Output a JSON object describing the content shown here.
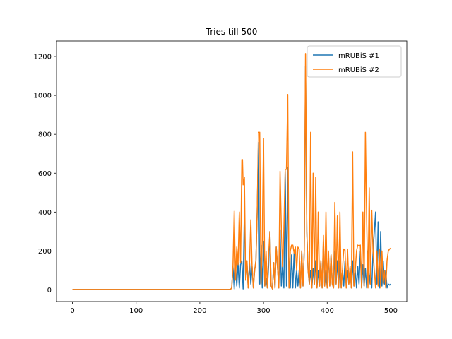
{
  "chart_data": {
    "type": "line",
    "title": "Tries till 500",
    "xlabel": "",
    "ylabel": "",
    "xlim": [
      -25,
      525
    ],
    "ylim": [
      -60,
      1280
    ],
    "xticks": [
      0,
      100,
      200,
      300,
      400,
      500
    ],
    "yticks": [
      0,
      200,
      400,
      600,
      800,
      1000,
      1200
    ],
    "grid": false,
    "legend": "top-right",
    "series": [
      {
        "name": "mRUBiS #1",
        "color": "#1f77b4",
        "points": [
          [
            0,
            2
          ],
          [
            100,
            2
          ],
          [
            200,
            2
          ],
          [
            248,
            2
          ],
          [
            250,
            10
          ],
          [
            252,
            120
          ],
          [
            254,
            5
          ],
          [
            256,
            130
          ],
          [
            258,
            20
          ],
          [
            260,
            140
          ],
          [
            262,
            10
          ],
          [
            264,
            130
          ],
          [
            266,
            150
          ],
          [
            268,
            5
          ],
          [
            270,
            400
          ],
          [
            272,
            50
          ],
          [
            274,
            150
          ],
          [
            276,
            10
          ],
          [
            278,
            140
          ],
          [
            280,
            30
          ],
          [
            282,
            120
          ],
          [
            284,
            10
          ],
          [
            286,
            100
          ],
          [
            288,
            150
          ],
          [
            290,
            400
          ],
          [
            292,
            760
          ],
          [
            294,
            30
          ],
          [
            296,
            230
          ],
          [
            298,
            10
          ],
          [
            300,
            250
          ],
          [
            302,
            20
          ],
          [
            304,
            60
          ],
          [
            306,
            10
          ],
          [
            308,
            120
          ],
          [
            310,
            300
          ],
          [
            312,
            20
          ],
          [
            314,
            5
          ],
          [
            316,
            140
          ],
          [
            318,
            10
          ],
          [
            320,
            220
          ],
          [
            322,
            120
          ],
          [
            324,
            10
          ],
          [
            326,
            310
          ],
          [
            328,
            20
          ],
          [
            330,
            120
          ],
          [
            332,
            10
          ],
          [
            334,
            610
          ],
          [
            336,
            20
          ],
          [
            338,
            630
          ],
          [
            340,
            10
          ],
          [
            342,
            10
          ],
          [
            344,
            180
          ],
          [
            346,
            10
          ],
          [
            348,
            190
          ],
          [
            350,
            10
          ],
          [
            352,
            100
          ],
          [
            354,
            20
          ],
          [
            356,
            100
          ],
          [
            358,
            10
          ],
          [
            360,
            200
          ],
          [
            362,
            20
          ],
          [
            364,
            200
          ],
          [
            366,
            1150
          ],
          [
            368,
            300
          ],
          [
            370,
            100
          ],
          [
            372,
            30
          ],
          [
            374,
            100
          ],
          [
            376,
            10
          ],
          [
            378,
            110
          ],
          [
            380,
            30
          ],
          [
            382,
            150
          ],
          [
            384,
            10
          ],
          [
            386,
            100
          ],
          [
            388,
            20
          ],
          [
            390,
            150
          ],
          [
            392,
            10
          ],
          [
            394,
            250
          ],
          [
            396,
            20
          ],
          [
            398,
            100
          ],
          [
            400,
            10
          ],
          [
            402,
            180
          ],
          [
            404,
            20
          ],
          [
            406,
            180
          ],
          [
            408,
            30
          ],
          [
            410,
            10
          ],
          [
            412,
            200
          ],
          [
            414,
            30
          ],
          [
            416,
            150
          ],
          [
            418,
            10
          ],
          [
            420,
            150
          ],
          [
            422,
            10
          ],
          [
            424,
            100
          ],
          [
            426,
            20
          ],
          [
            428,
            150
          ],
          [
            430,
            10
          ],
          [
            432,
            100
          ],
          [
            434,
            30
          ],
          [
            436,
            120
          ],
          [
            438,
            10
          ],
          [
            440,
            150
          ],
          [
            442,
            20
          ],
          [
            444,
            100
          ],
          [
            446,
            10
          ],
          [
            448,
            120
          ],
          [
            450,
            30
          ],
          [
            452,
            200
          ],
          [
            454,
            10
          ],
          [
            456,
            130
          ],
          [
            458,
            20
          ],
          [
            460,
            110
          ],
          [
            462,
            10
          ],
          [
            464,
            200
          ],
          [
            466,
            30
          ],
          [
            468,
            100
          ],
          [
            470,
            10
          ],
          [
            472,
            200
          ],
          [
            474,
            300
          ],
          [
            476,
            400
          ],
          [
            478,
            30
          ],
          [
            480,
            350
          ],
          [
            482,
            10
          ],
          [
            484,
            300
          ],
          [
            486,
            20
          ],
          [
            488,
            150
          ],
          [
            490,
            30
          ],
          [
            492,
            100
          ],
          [
            494,
            10
          ],
          [
            496,
            30
          ],
          [
            498,
            25
          ],
          [
            500,
            30
          ]
        ]
      },
      {
        "name": "mRUBiS #2",
        "color": "#ff7f0e",
        "points": [
          [
            0,
            2
          ],
          [
            100,
            2
          ],
          [
            200,
            2
          ],
          [
            248,
            2
          ],
          [
            250,
            10
          ],
          [
            252,
            120
          ],
          [
            254,
            405
          ],
          [
            256,
            50
          ],
          [
            258,
            220
          ],
          [
            260,
            130
          ],
          [
            262,
            400
          ],
          [
            264,
            140
          ],
          [
            266,
            670
          ],
          [
            267,
            670
          ],
          [
            268,
            540
          ],
          [
            270,
            580
          ],
          [
            272,
            50
          ],
          [
            274,
            150
          ],
          [
            276,
            10
          ],
          [
            278,
            140
          ],
          [
            280,
            360
          ],
          [
            282,
            120
          ],
          [
            284,
            10
          ],
          [
            286,
            100
          ],
          [
            288,
            150
          ],
          [
            290,
            400
          ],
          [
            292,
            810
          ],
          [
            294,
            810
          ],
          [
            296,
            30
          ],
          [
            298,
            260
          ],
          [
            300,
            780
          ],
          [
            302,
            20
          ],
          [
            304,
            200
          ],
          [
            306,
            10
          ],
          [
            308,
            180
          ],
          [
            310,
            300
          ],
          [
            312,
            20
          ],
          [
            314,
            5
          ],
          [
            316,
            140
          ],
          [
            318,
            10
          ],
          [
            320,
            220
          ],
          [
            322,
            120
          ],
          [
            324,
            10
          ],
          [
            326,
            610
          ],
          [
            328,
            320
          ],
          [
            330,
            120
          ],
          [
            332,
            310
          ],
          [
            334,
            620
          ],
          [
            336,
            620
          ],
          [
            338,
            1005
          ],
          [
            340,
            10
          ],
          [
            342,
            200
          ],
          [
            344,
            230
          ],
          [
            346,
            230
          ],
          [
            348,
            190
          ],
          [
            350,
            220
          ],
          [
            352,
            100
          ],
          [
            354,
            220
          ],
          [
            356,
            210
          ],
          [
            358,
            10
          ],
          [
            360,
            200
          ],
          [
            362,
            20
          ],
          [
            364,
            200
          ],
          [
            366,
            1215
          ],
          [
            368,
            300
          ],
          [
            370,
            100
          ],
          [
            372,
            30
          ],
          [
            374,
            810
          ],
          [
            376,
            10
          ],
          [
            378,
            600
          ],
          [
            380,
            30
          ],
          [
            382,
            580
          ],
          [
            384,
            10
          ],
          [
            386,
            400
          ],
          [
            388,
            20
          ],
          [
            390,
            150
          ],
          [
            392,
            10
          ],
          [
            394,
            280
          ],
          [
            396,
            20
          ],
          [
            398,
            400
          ],
          [
            400,
            10
          ],
          [
            402,
            200
          ],
          [
            404,
            20
          ],
          [
            406,
            180
          ],
          [
            408,
            30
          ],
          [
            410,
            10
          ],
          [
            412,
            450
          ],
          [
            414,
            30
          ],
          [
            416,
            380
          ],
          [
            418,
            10
          ],
          [
            420,
            400
          ],
          [
            422,
            10
          ],
          [
            424,
            100
          ],
          [
            426,
            210
          ],
          [
            428,
            205
          ],
          [
            430,
            10
          ],
          [
            432,
            210
          ],
          [
            434,
            30
          ],
          [
            436,
            120
          ],
          [
            438,
            10
          ],
          [
            440,
            710
          ],
          [
            442,
            20
          ],
          [
            444,
            100
          ],
          [
            446,
            200
          ],
          [
            448,
            230
          ],
          [
            450,
            225
          ],
          [
            452,
            230
          ],
          [
            454,
            10
          ],
          [
            456,
            400
          ],
          [
            458,
            20
          ],
          [
            460,
            810
          ],
          [
            462,
            350
          ],
          [
            464,
            10
          ],
          [
            466,
            525
          ],
          [
            468,
            30
          ],
          [
            470,
            410
          ],
          [
            472,
            200
          ],
          [
            474,
            100
          ],
          [
            476,
            10
          ],
          [
            478,
            200
          ],
          [
            480,
            20
          ],
          [
            482,
            210
          ],
          [
            484,
            10
          ],
          [
            486,
            200
          ],
          [
            488,
            30
          ],
          [
            490,
            100
          ],
          [
            492,
            10
          ],
          [
            494,
            150
          ],
          [
            496,
            200
          ],
          [
            498,
            210
          ],
          [
            500,
            215
          ]
        ]
      }
    ]
  }
}
